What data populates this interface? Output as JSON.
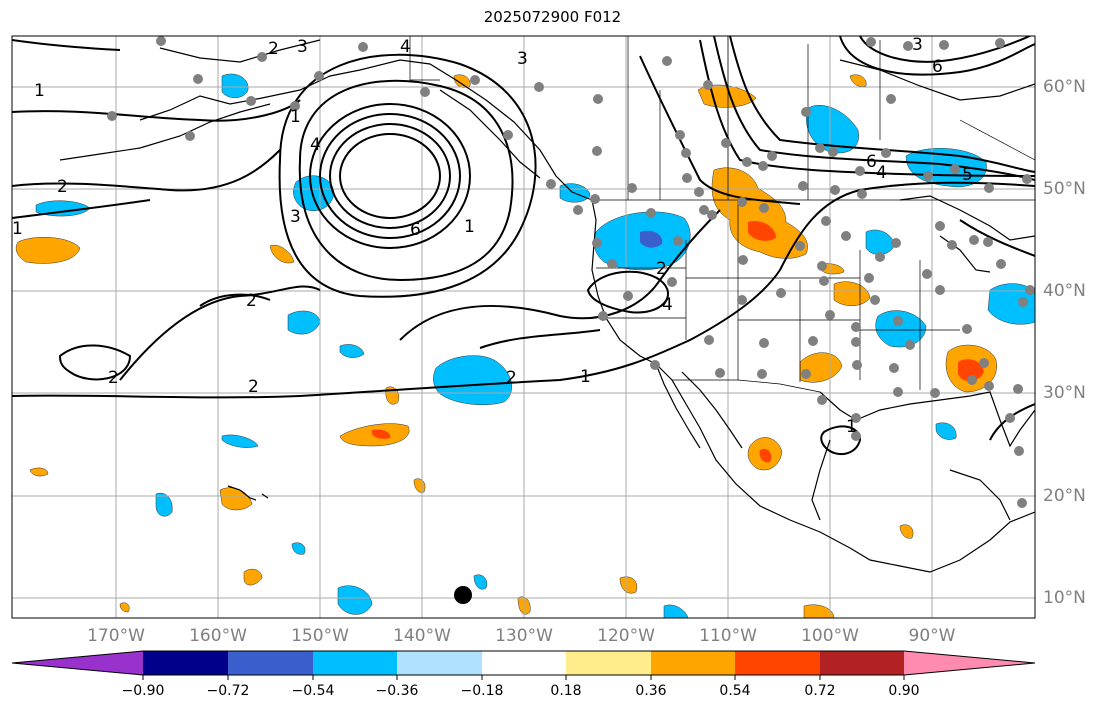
{
  "title": "2025072900 F012",
  "map": {
    "lon_range": [
      -180,
      -80
    ],
    "lat_range": [
      8,
      65
    ],
    "lon_labels": [
      "170°W",
      "160°W",
      "150°W",
      "140°W",
      "130°W",
      "120°W",
      "110°W",
      "100°W",
      "90°W"
    ],
    "lat_labels": [
      "60°N",
      "50°N",
      "40°N",
      "30°N",
      "20°N",
      "10°N"
    ],
    "grid": true,
    "contour_labels": [
      "1",
      "2",
      "3",
      "4",
      "6",
      "3",
      "2",
      "1",
      "4",
      "6",
      "4",
      "6",
      "5",
      "3",
      "2",
      "1",
      "2",
      "2",
      "2",
      "1",
      "4",
      "2",
      "3",
      "1",
      "1"
    ]
  },
  "colorbar": {
    "ticks": [
      "−0.90",
      "−0.72",
      "−0.54",
      "−0.36",
      "−0.18",
      "0.18",
      "0.36",
      "0.54",
      "0.72",
      "0.90"
    ],
    "colors": [
      "#9932CC",
      "#00008B",
      "#3A5FCD",
      "#00BFFF",
      "#B0E2FF",
      "#FFFFFF",
      "#FFEC8B",
      "#FFA500",
      "#FF4500",
      "#B22222",
      "#FF8BB0"
    ]
  }
}
